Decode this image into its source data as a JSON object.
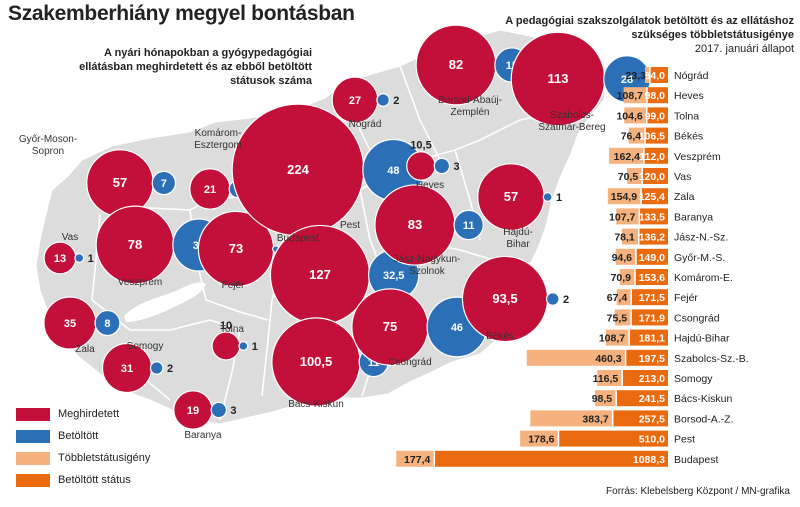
{
  "title": "Szakemberhiány megyel bontásban",
  "map_subtitle": "A nyári hónapokban a gyógypedagógiai ellátásban meghirdetett és az ebből betöltött státusok száma",
  "bar_title": "A pedagógiai szakszolgálatok betöltött és az ellátáshoz szükséges többletstátusigénye",
  "bar_date": "2017. januári állapot",
  "source": "Forrás: Klebelsberg Központ / MN-grafika",
  "colors": {
    "meghirdetett": "#c3103a",
    "betoltott": "#2b6fb6",
    "tobblet": "#f5b27e",
    "betoltott_statusz": "#ea6a10",
    "map": "#dcdcdc"
  },
  "legend": [
    {
      "label": "Meghirdetett",
      "color": "#c3103a"
    },
    {
      "label": "Betöltött",
      "color": "#2b6fb6"
    },
    {
      "label": "Többletstátusigény",
      "color": "#f5b27e"
    },
    {
      "label": "Betöltött státus",
      "color": "#ea6a10"
    }
  ],
  "chart_data": [
    {
      "type": "bubble-map",
      "series": [
        "Meghirdetett",
        "Betöltött"
      ],
      "regions": [
        {
          "name": "Győr-Moson-Sopron",
          "meghirdetett": 57,
          "betoltott": 7,
          "label": "Győr-Moson-\nSopron"
        },
        {
          "name": "Komárom-Esztergom",
          "meghirdetett": 21,
          "betoltott": 4,
          "label": "Komárom-\nEsztergom"
        },
        {
          "name": "Vas",
          "meghirdetett": 13,
          "betoltott": 1,
          "label": "Vas"
        },
        {
          "name": "Veszprém",
          "meghirdetett": 78,
          "betoltott": 35,
          "label": "Veszprém"
        },
        {
          "name": "Fejér",
          "meghirdetett": 73,
          "betoltott": 0,
          "label": "Fejér"
        },
        {
          "name": "Budapest",
          "meghirdetett": 224,
          "betoltott": 48,
          "label": "Budapest"
        },
        {
          "name": "Pest",
          "meghirdetett": 127,
          "betoltott": 32.5,
          "label": "Pest"
        },
        {
          "name": "Nógrád",
          "meghirdetett": 27,
          "betoltott": 2,
          "label": "Nógrád"
        },
        {
          "name": "Heves",
          "meghirdetett": 10.5,
          "betoltott": 3,
          "label": "Heves"
        },
        {
          "name": "Borsod-Abaúj-Zemplén",
          "meghirdetett": 82,
          "betoltott": 15,
          "label": "Borsod-Abaúj-\nZemplén"
        },
        {
          "name": "Szabolcs-Szatmár-Bereg",
          "meghirdetett": 113,
          "betoltott": 28,
          "label": "Szabolcs-\nSzatmár-Bereg"
        },
        {
          "name": "Hajdú-Bihar",
          "meghirdetett": 57,
          "betoltott": 1,
          "label": "Hajdú-\nBihar"
        },
        {
          "name": "Jász-Nagykun-Szolnok",
          "meghirdetett": 83,
          "betoltott": 11,
          "label": "Jász-Nagykun-\nSzolnok"
        },
        {
          "name": "Zala",
          "meghirdetett": 35,
          "betoltott": 8,
          "label": "Zala"
        },
        {
          "name": "Somogy",
          "meghirdetett": 31,
          "betoltott": 2,
          "label": "Somogy"
        },
        {
          "name": "Tolna",
          "meghirdetett": 10,
          "betoltott": 1,
          "label": "Tolna"
        },
        {
          "name": "Baranya",
          "meghirdetett": 19,
          "betoltott": 3,
          "label": "Baranya"
        },
        {
          "name": "Bács-Kiskun",
          "meghirdetett": 100.5,
          "betoltott": 11,
          "label": "Bács-Kiskun"
        },
        {
          "name": "Csongrád",
          "meghirdetett": 75,
          "betoltott": 46,
          "label": "Csongrád"
        },
        {
          "name": "Békés",
          "meghirdetett": 93.5,
          "betoltott": 2,
          "label": "Békés"
        }
      ]
    },
    {
      "type": "bar",
      "orientation": "horizontal-stacked",
      "series": [
        {
          "name": "Többletstátusigény",
          "color": "#f5b27e"
        },
        {
          "name": "Betöltött státus",
          "color": "#ea6a10"
        }
      ],
      "rows": [
        {
          "county": "Nógrád",
          "tobblet": 23.3,
          "betoltott": 84.0,
          "tobblet_label": "23,3",
          "betoltott_label": "84,0"
        },
        {
          "county": "Heves",
          "tobblet": 108.7,
          "betoltott": 98.0,
          "tobblet_label": "108,7",
          "betoltott_label": "98,0"
        },
        {
          "county": "Tolna",
          "tobblet": 104.6,
          "betoltott": 99.0,
          "tobblet_label": "104,6",
          "betoltott_label": "99,0"
        },
        {
          "county": "Békés",
          "tobblet": 76.4,
          "betoltott": 106.5,
          "tobblet_label": "76,4",
          "betoltott_label": "106,5"
        },
        {
          "county": "Veszprém",
          "tobblet": 162.4,
          "betoltott": 112.0,
          "tobblet_label": "162,4",
          "betoltott_label": "112,0"
        },
        {
          "county": "Vas",
          "tobblet": 70.5,
          "betoltott": 120.0,
          "tobblet_label": "70,5",
          "betoltott_label": "120,0"
        },
        {
          "county": "Zala",
          "tobblet": 154.9,
          "betoltott": 125.4,
          "tobblet_label": "154,9",
          "betoltott_label": "125,4"
        },
        {
          "county": "Baranya",
          "tobblet": 107.7,
          "betoltott": 133.5,
          "tobblet_label": "107,7",
          "betoltott_label": "133,5"
        },
        {
          "county": "Jász-N.-Sz.",
          "tobblet": 78.1,
          "betoltott": 136.2,
          "tobblet_label": "78,1",
          "betoltott_label": "136,2"
        },
        {
          "county": "Győr-M.-S.",
          "tobblet": 94.6,
          "betoltott": 149.0,
          "tobblet_label": "94,6",
          "betoltott_label": "149,0"
        },
        {
          "county": "Komárom-E.",
          "tobblet": 70.9,
          "betoltott": 153.6,
          "tobblet_label": "70,9",
          "betoltott_label": "153,6"
        },
        {
          "county": "Fejér",
          "tobblet": 67.4,
          "betoltott": 171.5,
          "tobblet_label": "67,4",
          "betoltott_label": "171,5"
        },
        {
          "county": "Csongrád",
          "tobblet": 75.5,
          "betoltott": 171.9,
          "tobblet_label": "75,5",
          "betoltott_label": "171,9"
        },
        {
          "county": "Hajdú-Bihar",
          "tobblet": 108.7,
          "betoltott": 181.1,
          "tobblet_label": "108,7",
          "betoltott_label": "181,1"
        },
        {
          "county": "Szabolcs-Sz.-B.",
          "tobblet": 460.3,
          "betoltott": 197.5,
          "tobblet_label": "460,3",
          "betoltott_label": "197,5"
        },
        {
          "county": "Somogy",
          "tobblet": 116.5,
          "betoltott": 213.0,
          "tobblet_label": "116,5",
          "betoltott_label": "213,0"
        },
        {
          "county": "Bács-Kiskun",
          "tobblet": 98.5,
          "betoltott": 241.5,
          "tobblet_label": "98,5",
          "betoltott_label": "241,5"
        },
        {
          "county": "Borsod-A.-Z.",
          "tobblet": 383.7,
          "betoltott": 257.5,
          "tobblet_label": "383,7",
          "betoltott_label": "257,5"
        },
        {
          "county": "Pest",
          "tobblet": 178.6,
          "betoltott": 510.0,
          "tobblet_label": "178,6",
          "betoltott_label": "510,0"
        },
        {
          "county": "Budapest",
          "tobblet": 177.4,
          "betoltott": 1088.3,
          "tobblet_label": "177,4",
          "betoltott_label": "1088,3"
        }
      ]
    }
  ]
}
